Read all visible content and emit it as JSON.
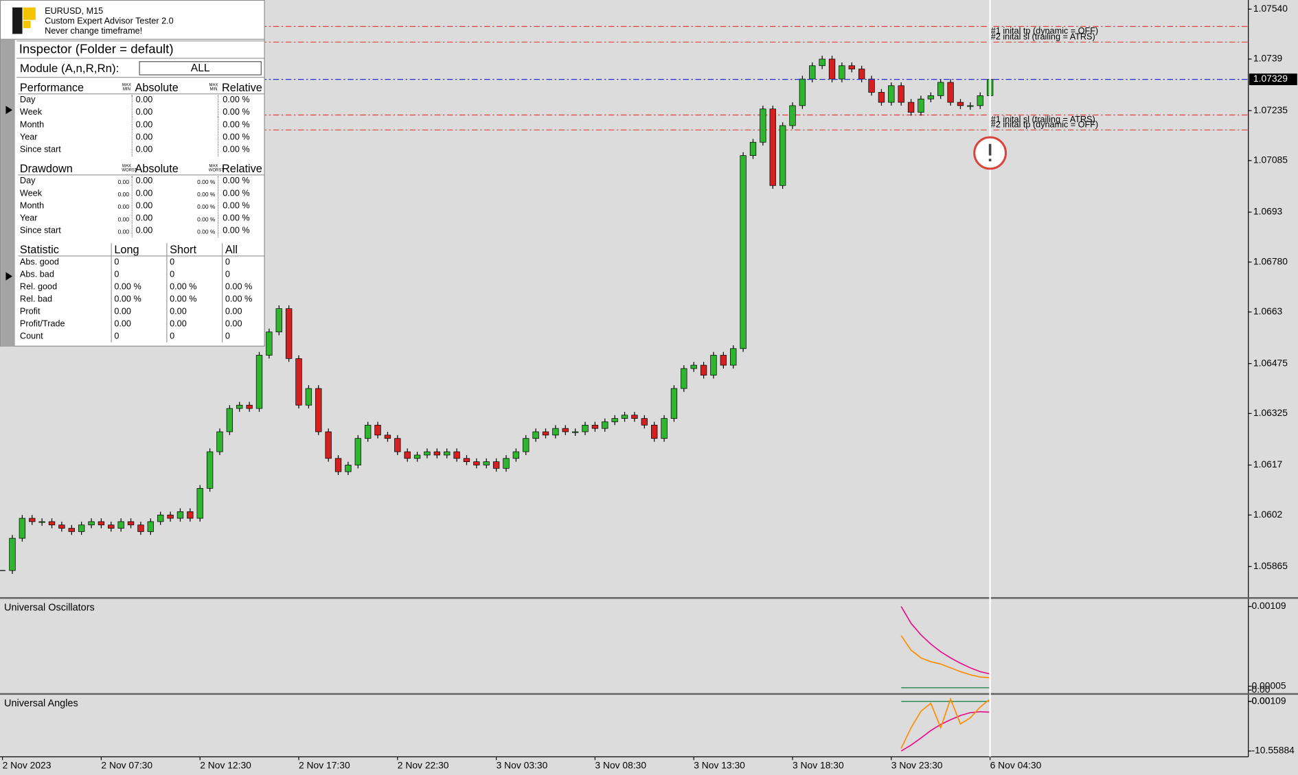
{
  "header": {
    "symbol": "EURUSD, M15",
    "name": "Custom Expert Advisor Tester 2.0",
    "note": "Never change timeframe!"
  },
  "inspector": {
    "title": "Inspector (Folder = default)",
    "module_label": "Module (A,n,R,Rn):",
    "module_value": "ALL"
  },
  "performance": {
    "headers": [
      "Performance",
      "Absolute",
      "Relative"
    ],
    "mini": [
      "MAX",
      "MIN"
    ],
    "rows": [
      [
        "Day",
        "0.00",
        "0.00 %"
      ],
      [
        "Week",
        "0.00",
        "0.00 %"
      ],
      [
        "Month",
        "0.00",
        "0.00 %"
      ],
      [
        "Year",
        "0.00",
        "0.00 %"
      ],
      [
        "Since start",
        "0.00",
        "0.00 %"
      ]
    ]
  },
  "drawdown": {
    "headers": [
      "Drawdown",
      "Absolute",
      "Relative"
    ],
    "mini": [
      "MAX",
      "WORST"
    ],
    "rows": [
      [
        "Day",
        "0.00",
        "0.00",
        "0.00 %",
        "0.00 %"
      ],
      [
        "Week",
        "0.00",
        "0.00",
        "0.00 %",
        "0.00 %"
      ],
      [
        "Month",
        "0.00",
        "0.00",
        "0.00 %",
        "0.00 %"
      ],
      [
        "Year",
        "0.00",
        "0.00",
        "0.00 %",
        "0.00 %"
      ],
      [
        "Since start",
        "0.00",
        "0.00",
        "0.00 %",
        "0.00 %"
      ]
    ]
  },
  "statistic": {
    "headers": [
      "Statistic",
      "Long",
      "Short",
      "All"
    ],
    "rows": [
      [
        "Abs. good",
        "0",
        "0",
        "0"
      ],
      [
        "Abs. bad",
        "0",
        "0",
        "0"
      ],
      [
        "Rel. good",
        "0.00 %",
        "0.00 %",
        "0.00 %"
      ],
      [
        "Rel. bad",
        "0.00 %",
        "0.00 %",
        "0.00 %"
      ],
      [
        "Profit",
        "0.00",
        "0.00",
        "0.00"
      ],
      [
        "Profit/Trade",
        "0.00",
        "0.00",
        "0.00"
      ],
      [
        "Count",
        "0",
        "0",
        "0"
      ]
    ]
  },
  "chart_data": [
    {
      "type": "candlestick",
      "categories": [
        "2 Nov 2023",
        null,
        null,
        null,
        null,
        null,
        null,
        null,
        null,
        null,
        "2 Nov 07:30",
        null,
        null,
        null,
        null,
        null,
        null,
        null,
        null,
        null,
        "2 Nov 12:30",
        null,
        null,
        null,
        null,
        null,
        null,
        null,
        null,
        null,
        "2 Nov 17:30",
        null,
        null,
        null,
        null,
        null,
        null,
        null,
        null,
        null,
        "2 Nov 22:30",
        null,
        null,
        null,
        null,
        null,
        null,
        null,
        null,
        null,
        "3 Nov 03:30",
        null,
        null,
        null,
        null,
        null,
        null,
        null,
        null,
        null,
        "3 Nov 08:30",
        null,
        null,
        null,
        null,
        null,
        null,
        null,
        null,
        null,
        "3 Nov 13:30",
        null,
        null,
        null,
        null,
        null,
        null,
        null,
        null,
        null,
        "3 Nov 18:30",
        null,
        null,
        null,
        null,
        null,
        null,
        null,
        null,
        null,
        "3 Nov 23:30",
        null,
        null,
        null,
        null,
        null,
        null,
        null,
        null,
        null,
        "6 Nov 04:30"
      ],
      "values": [
        1.05853,
        1.0595,
        1.0601,
        1.06,
        1.06,
        1.0599,
        1.0598,
        1.0597,
        1.0599,
        1.06,
        1.0599,
        1.0598,
        1.06,
        1.0599,
        1.0597,
        1.06,
        1.0602,
        1.0601,
        1.0603,
        1.0601,
        1.061,
        1.0621,
        1.0627,
        1.0634,
        1.0635,
        1.0634,
        1.065,
        1.0657,
        1.0664,
        1.0649,
        1.0635,
        1.064,
        1.0627,
        1.0619,
        1.0615,
        1.0617,
        1.0625,
        1.0629,
        1.0626,
        1.0625,
        1.0621,
        1.0619,
        1.062,
        1.0621,
        1.062,
        1.0621,
        1.0619,
        1.0618,
        1.0617,
        1.0618,
        1.0616,
        1.0619,
        1.0621,
        1.0625,
        1.0627,
        1.0626,
        1.0628,
        1.0627,
        1.0627,
        1.0629,
        1.0628,
        1.063,
        1.0631,
        1.0632,
        1.0631,
        1.0629,
        1.0625,
        1.0631,
        1.064,
        1.0646,
        1.0647,
        1.0644,
        1.065,
        1.0647,
        1.0652,
        1.071,
        1.0714,
        1.0724,
        1.0701,
        1.0719,
        1.0725,
        1.0733,
        1.0737,
        1.0739,
        1.0733,
        1.0737,
        1.0736,
        1.0733,
        1.0729,
        1.0726,
        1.0731,
        1.0726,
        1.0723,
        1.0727,
        1.0728,
        1.0732,
        1.0726,
        1.0725,
        1.0725,
        1.0728,
        1.07329
      ],
      "up_color": "#2fb52f",
      "down_color": "#d42020",
      "ylim": [
        1.05773,
        1.0756
      ],
      "yticks": [
        {
          "value": 1.0754,
          "label": "1.07540"
        },
        1.0739,
        1.07235,
        1.07085,
        1.0693,
        {
          "value": 1.0678,
          "label": "1.06780"
        },
        1.0663,
        1.06475,
        1.06325,
        1.0617,
        1.0602,
        1.05865
      ],
      "current_price": 1.07329,
      "price_line_color": "#2030d0",
      "level_color": "#e0403a",
      "levels": [
        {
          "value": 1.07488,
          "label": "#1 inital tp (dynamic = OFF)"
        },
        {
          "value": 1.07441,
          "label": "#2 inital sl (trailing = ATRS)"
        },
        {
          "value": 1.07222,
          "label": "#1 inital sl (trailing = ATRS)"
        },
        {
          "value": 1.07177,
          "label": "#2 inital tp (dynamic = OFF)"
        }
      ]
    },
    {
      "type": "line",
      "title": "Universal Oscillators",
      "ylim": [
        -4e-05,
        0.00119
      ],
      "yticks": [
        0.00109,
        5e-05,
        {
          "value": 0,
          "label": "0.00"
        }
      ],
      "levels": [
        3e-05
      ],
      "level_color": "#2e8b57",
      "series": [
        {
          "color": "#e8108a",
          "values": [
            null,
            null,
            null,
            null,
            null,
            null,
            null,
            null,
            null,
            null,
            null,
            null,
            null,
            null,
            null,
            null,
            null,
            null,
            null,
            null,
            null,
            null,
            null,
            null,
            null,
            null,
            null,
            null,
            null,
            null,
            null,
            null,
            null,
            null,
            null,
            null,
            null,
            null,
            null,
            null,
            null,
            null,
            null,
            null,
            null,
            null,
            null,
            null,
            null,
            null,
            null,
            null,
            null,
            null,
            null,
            null,
            null,
            null,
            null,
            null,
            null,
            null,
            null,
            null,
            null,
            null,
            null,
            null,
            null,
            null,
            null,
            null,
            null,
            null,
            null,
            null,
            null,
            null,
            null,
            null,
            null,
            null,
            null,
            null,
            null,
            null,
            null,
            null,
            null,
            null,
            null,
            0.00109,
            0.00087,
            0.00072,
            0.0006,
            0.0005,
            0.00042,
            0.00035,
            0.00029,
            0.00024,
            0.00021
          ]
        },
        {
          "color": "#ff8c00",
          "values": [
            null,
            null,
            null,
            null,
            null,
            null,
            null,
            null,
            null,
            null,
            null,
            null,
            null,
            null,
            null,
            null,
            null,
            null,
            null,
            null,
            null,
            null,
            null,
            null,
            null,
            null,
            null,
            null,
            null,
            null,
            null,
            null,
            null,
            null,
            null,
            null,
            null,
            null,
            null,
            null,
            null,
            null,
            null,
            null,
            null,
            null,
            null,
            null,
            null,
            null,
            null,
            null,
            null,
            null,
            null,
            null,
            null,
            null,
            null,
            null,
            null,
            null,
            null,
            null,
            null,
            null,
            null,
            null,
            null,
            null,
            null,
            null,
            null,
            null,
            null,
            null,
            null,
            null,
            null,
            null,
            null,
            null,
            null,
            null,
            null,
            null,
            null,
            null,
            null,
            null,
            null,
            0.00071,
            0.00052,
            0.00042,
            0.00037,
            0.00034,
            0.00029,
            0.00024,
            0.0002,
            0.00017,
            0.00016
          ]
        }
      ]
    },
    {
      "type": "line",
      "title": "Universal Angles",
      "ylim": [
        -11.79,
        1.41
      ],
      "yticks": [
        0.00109,
        {
          "value": 0,
          "label": "0.00"
        },
        -10.55884
      ],
      "levels": [
        0
      ],
      "level_color": "#2e8b57",
      "series": [
        {
          "color": "#e8108a",
          "values": [
            null,
            null,
            null,
            null,
            null,
            null,
            null,
            null,
            null,
            null,
            null,
            null,
            null,
            null,
            null,
            null,
            null,
            null,
            null,
            null,
            null,
            null,
            null,
            null,
            null,
            null,
            null,
            null,
            null,
            null,
            null,
            null,
            null,
            null,
            null,
            null,
            null,
            null,
            null,
            null,
            null,
            null,
            null,
            null,
            null,
            null,
            null,
            null,
            null,
            null,
            null,
            null,
            null,
            null,
            null,
            null,
            null,
            null,
            null,
            null,
            null,
            null,
            null,
            null,
            null,
            null,
            null,
            null,
            null,
            null,
            null,
            null,
            null,
            null,
            null,
            null,
            null,
            null,
            null,
            null,
            null,
            null,
            null,
            null,
            null,
            null,
            null,
            null,
            null,
            null,
            null,
            -10.56,
            -9.3,
            -7.8,
            -6.2,
            -4.9,
            -3.9,
            -3.0,
            -2.4,
            -2.2,
            -2.3
          ]
        },
        {
          "color": "#ff8c00",
          "values": [
            null,
            null,
            null,
            null,
            null,
            null,
            null,
            null,
            null,
            null,
            null,
            null,
            null,
            null,
            null,
            null,
            null,
            null,
            null,
            null,
            null,
            null,
            null,
            null,
            null,
            null,
            null,
            null,
            null,
            null,
            null,
            null,
            null,
            null,
            null,
            null,
            null,
            null,
            null,
            null,
            null,
            null,
            null,
            null,
            null,
            null,
            null,
            null,
            null,
            null,
            null,
            null,
            null,
            null,
            null,
            null,
            null,
            null,
            null,
            null,
            null,
            null,
            null,
            null,
            null,
            null,
            null,
            null,
            null,
            null,
            null,
            null,
            null,
            null,
            null,
            null,
            null,
            null,
            null,
            null,
            null,
            null,
            null,
            null,
            null,
            null,
            null,
            null,
            null,
            null,
            null,
            -10.0,
            -5.6,
            -2.1,
            -0.4,
            -5.6,
            0.5,
            -4.8,
            -3.5,
            -1.2,
            0.5
          ]
        }
      ]
    }
  ]
}
